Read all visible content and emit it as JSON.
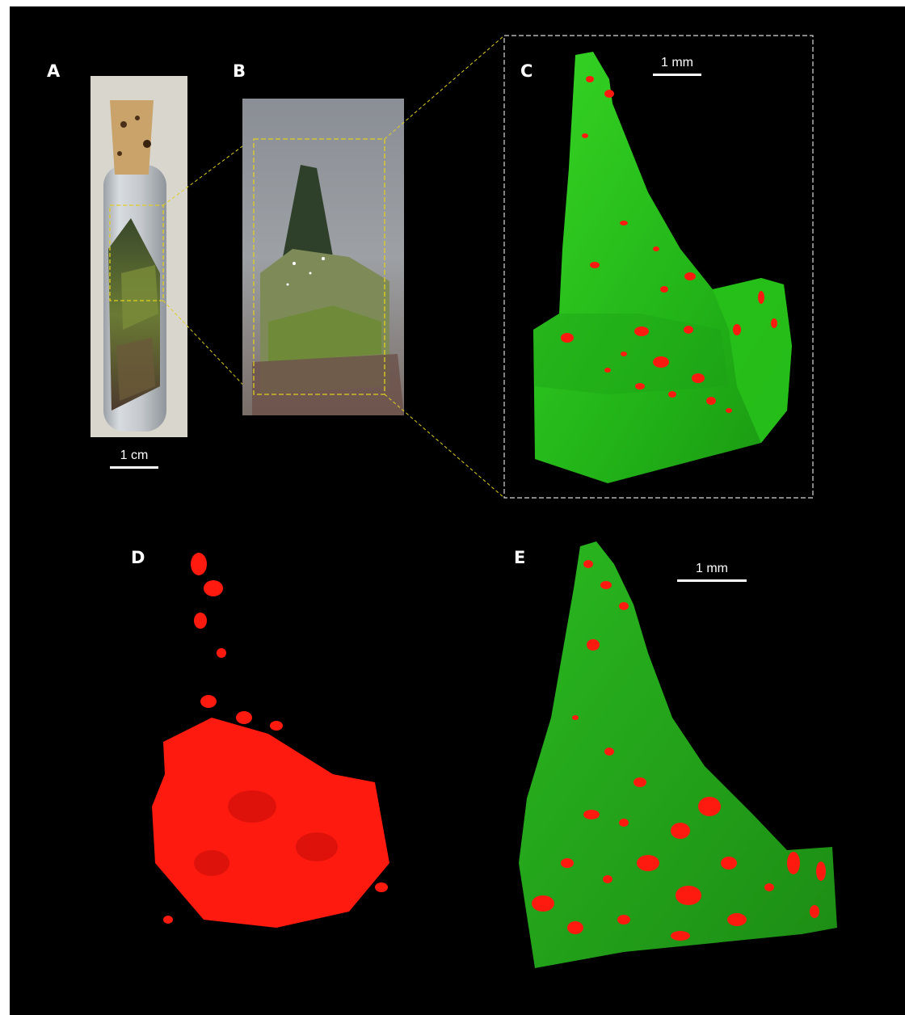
{
  "panels": {
    "a": {
      "label": "A"
    },
    "b": {
      "label": "B"
    },
    "c": {
      "label": "C"
    },
    "d": {
      "label": "D"
    },
    "e": {
      "label": "E"
    }
  },
  "scalebars": {
    "a": {
      "text": "1 cm"
    },
    "c": {
      "text": "1 mm"
    },
    "e": {
      "text": "1 mm"
    }
  },
  "colors": {
    "background": "#000000",
    "tissue_green": "#2ec81e",
    "particle_red": "#ff1a10",
    "zoom_box": "#e0d020",
    "inset_box": "#d8d8d8",
    "cork": "#c9a36a",
    "glass_tube": "#b8bcc0",
    "moss": "#5a6a2a"
  }
}
